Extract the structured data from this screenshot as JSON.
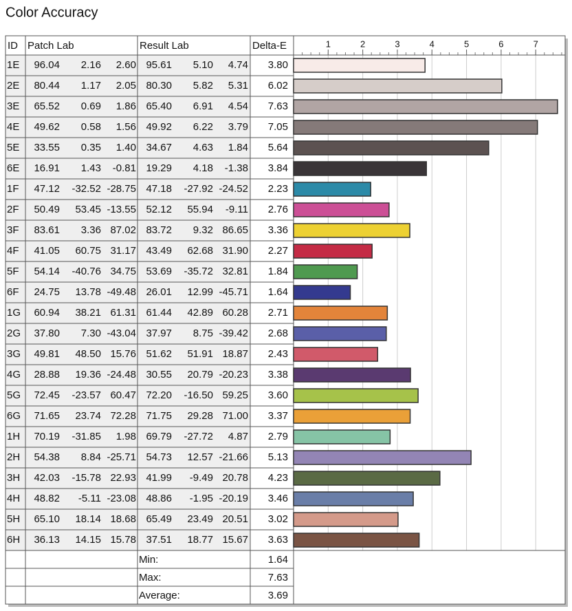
{
  "title": "Color Accuracy",
  "table": {
    "headers": [
      "ID",
      "Patch Lab",
      "Result Lab",
      "Delta-E"
    ],
    "rows": [
      {
        "patch": [
          "96.04",
          "2.16",
          "2.60"
        ],
        "result": [
          "95.61",
          "5.10",
          "4.74"
        ]
      },
      {
        "patch": [
          "80.44",
          "1.17",
          "2.05"
        ],
        "result": [
          "80.30",
          "5.82",
          "5.31"
        ]
      },
      {
        "patch": [
          "65.52",
          "0.69",
          "1.86"
        ],
        "result": [
          "65.40",
          "6.91",
          "4.54"
        ]
      },
      {
        "patch": [
          "49.62",
          "0.58",
          "1.56"
        ],
        "result": [
          "49.92",
          "6.22",
          "3.79"
        ]
      },
      {
        "patch": [
          "33.55",
          "0.35",
          "1.40"
        ],
        "result": [
          "34.67",
          "4.63",
          "1.84"
        ]
      },
      {
        "patch": [
          "16.91",
          "1.43",
          "-0.81"
        ],
        "result": [
          "19.29",
          "4.18",
          "-1.38"
        ]
      },
      {
        "patch": [
          "47.12",
          "-32.52",
          "-28.75"
        ],
        "result": [
          "47.18",
          "-27.92",
          "-24.52"
        ]
      },
      {
        "patch": [
          "50.49",
          "53.45",
          "-13.55"
        ],
        "result": [
          "52.12",
          "55.94",
          "-9.11"
        ]
      },
      {
        "patch": [
          "83.61",
          "3.36",
          "87.02"
        ],
        "result": [
          "83.72",
          "9.32",
          "86.65"
        ]
      },
      {
        "patch": [
          "41.05",
          "60.75",
          "31.17"
        ],
        "result": [
          "43.49",
          "62.68",
          "31.90"
        ]
      },
      {
        "patch": [
          "54.14",
          "-40.76",
          "34.75"
        ],
        "result": [
          "53.69",
          "-35.72",
          "32.81"
        ]
      },
      {
        "patch": [
          "24.75",
          "13.78",
          "-49.48"
        ],
        "result": [
          "26.01",
          "12.99",
          "-45.71"
        ]
      },
      {
        "patch": [
          "60.94",
          "38.21",
          "61.31"
        ],
        "result": [
          "61.44",
          "42.89",
          "60.28"
        ]
      },
      {
        "patch": [
          "37.80",
          "7.30",
          "-43.04"
        ],
        "result": [
          "37.97",
          "8.75",
          "-39.42"
        ]
      },
      {
        "patch": [
          "49.81",
          "48.50",
          "15.76"
        ],
        "result": [
          "51.62",
          "51.91",
          "18.87"
        ]
      },
      {
        "patch": [
          "28.88",
          "19.36",
          "-24.48"
        ],
        "result": [
          "30.55",
          "20.79",
          "-20.23"
        ]
      },
      {
        "patch": [
          "72.45",
          "-23.57",
          "60.47"
        ],
        "result": [
          "72.20",
          "-16.50",
          "59.25"
        ]
      },
      {
        "patch": [
          "71.65",
          "23.74",
          "72.28"
        ],
        "result": [
          "71.75",
          "29.28",
          "71.00"
        ]
      },
      {
        "patch": [
          "70.19",
          "-31.85",
          "1.98"
        ],
        "result": [
          "69.79",
          "-27.72",
          "4.87"
        ]
      },
      {
        "patch": [
          "54.38",
          "8.84",
          "-25.71"
        ],
        "result": [
          "54.73",
          "12.57",
          "-21.66"
        ]
      },
      {
        "patch": [
          "42.03",
          "-15.78",
          "22.93"
        ],
        "result": [
          "41.99",
          "-9.49",
          "20.78"
        ]
      },
      {
        "patch": [
          "48.82",
          "-5.11",
          "-23.08"
        ],
        "result": [
          "48.86",
          "-1.95",
          "-20.19"
        ]
      },
      {
        "patch": [
          "65.10",
          "18.14",
          "18.68"
        ],
        "result": [
          "65.49",
          "23.49",
          "20.51"
        ]
      },
      {
        "patch": [
          "36.13",
          "14.15",
          "15.78"
        ],
        "result": [
          "37.51",
          "18.77",
          "15.67"
        ]
      }
    ],
    "summary": [
      {
        "label": "Min:",
        "value": "1.64"
      },
      {
        "label": "Max:",
        "value": "7.63"
      },
      {
        "label": "Average:",
        "value": "3.69"
      }
    ]
  },
  "chart_data": {
    "type": "bar",
    "orientation": "horizontal",
    "categories": [
      "1E",
      "2E",
      "3E",
      "4E",
      "5E",
      "6E",
      "1F",
      "2F",
      "3F",
      "4F",
      "5F",
      "6F",
      "1G",
      "2G",
      "3G",
      "4G",
      "5G",
      "6G",
      "1H",
      "2H",
      "3H",
      "4H",
      "5H",
      "6H"
    ],
    "values": [
      3.8,
      6.02,
      7.63,
      7.05,
      5.64,
      3.84,
      2.23,
      2.76,
      3.36,
      2.27,
      1.84,
      1.64,
      2.71,
      2.68,
      2.43,
      3.38,
      3.6,
      3.37,
      2.79,
      5.13,
      4.23,
      3.46,
      3.02,
      3.63
    ],
    "value_labels": [
      "3.80",
      "6.02",
      "7.63",
      "7.05",
      "5.64",
      "3.84",
      "2.23",
      "2.76",
      "3.36",
      "2.27",
      "1.84",
      "1.64",
      "2.71",
      "2.68",
      "2.43",
      "3.38",
      "3.60",
      "3.37",
      "2.79",
      "5.13",
      "4.23",
      "3.46",
      "3.02",
      "3.63"
    ],
    "colors": [
      "#f8ebe8",
      "#d6cdc9",
      "#b1a5a4",
      "#857a79",
      "#5c5251",
      "#3a3538",
      "#2c8aa8",
      "#cc4f96",
      "#edd133",
      "#c42b45",
      "#4f9a50",
      "#343a8f",
      "#e3843a",
      "#5a5fa8",
      "#d15a6a",
      "#5a3a70",
      "#a6c24a",
      "#eaa038",
      "#86c4a6",
      "#9385b5",
      "#5a6a44",
      "#6a7ea8",
      "#d49a8a",
      "#7a5444"
    ],
    "xlim": [
      0,
      7.85
    ],
    "xticks": [
      1,
      2,
      3,
      4,
      5,
      6,
      7
    ],
    "grid": true
  }
}
